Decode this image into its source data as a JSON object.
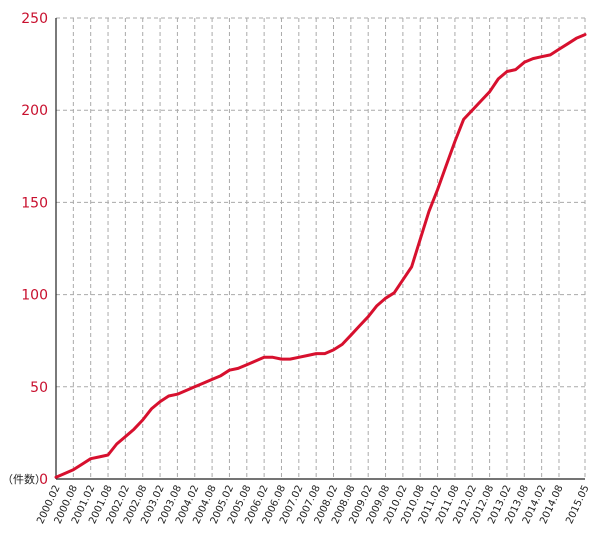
{
  "chart_data": {
    "type": "line",
    "title": "",
    "xlabel": "",
    "ylabel": "（件数）",
    "ylim": [
      0,
      250
    ],
    "yticks": [
      "0",
      "50",
      "100",
      "150",
      "200",
      "250"
    ],
    "grid": true,
    "colors": {
      "line": "#d7102e",
      "axis_text": "#c8102e",
      "grid": "#aaaaaa"
    },
    "x_ticks": [
      "2000.02",
      "2000.08",
      "2001.02",
      "2001.08",
      "2002.02",
      "2002.08",
      "2003.02",
      "2003.08",
      "2004.02",
      "2004.08",
      "2005.02",
      "2005.08",
      "2006.02",
      "2006.08",
      "2007.02",
      "2007.08",
      "2008.02",
      "2008.08",
      "2009.02",
      "2009.08",
      "2010.02",
      "2010.08",
      "2011.02",
      "2011.08",
      "2012.02",
      "2012.08",
      "2013.02",
      "2013.08",
      "2014.02",
      "2014.08",
      "2015.05"
    ],
    "series": [
      {
        "x": [
          "2000.02",
          "2000.05",
          "2000.08",
          "2000.11",
          "2001.02",
          "2001.05",
          "2001.08",
          "2001.11",
          "2002.02",
          "2002.05",
          "2002.08",
          "2002.11",
          "2003.02",
          "2003.05",
          "2003.08",
          "2003.11",
          "2004.02",
          "2004.05",
          "2004.08",
          "2004.11",
          "2005.02",
          "2005.05",
          "2005.08",
          "2005.11",
          "2006.02",
          "2006.05",
          "2006.08",
          "2006.11",
          "2007.02",
          "2007.05",
          "2007.08",
          "2007.11",
          "2008.02",
          "2008.05",
          "2008.08",
          "2008.11",
          "2009.02",
          "2009.05",
          "2009.08",
          "2009.11",
          "2010.02",
          "2010.05",
          "2010.08",
          "2010.11",
          "2011.02",
          "2011.05",
          "2011.08",
          "2011.11",
          "2012.02",
          "2012.05",
          "2012.08",
          "2012.11",
          "2013.02",
          "2013.05",
          "2013.08",
          "2013.11",
          "2014.02",
          "2014.05",
          "2014.08",
          "2014.11",
          "2015.02",
          "2015.05"
        ],
        "values": [
          1,
          3,
          5,
          8,
          11,
          12,
          13,
          19,
          23,
          27,
          32,
          38,
          42,
          45,
          46,
          48,
          50,
          52,
          54,
          56,
          59,
          60,
          62,
          64,
          66,
          66,
          65,
          65,
          66,
          67,
          68,
          68,
          70,
          73,
          78,
          83,
          88,
          94,
          98,
          101,
          108,
          115,
          130,
          145,
          157,
          170,
          183,
          195,
          200,
          205,
          210,
          217,
          221,
          222,
          226,
          228,
          229,
          230,
          233,
          236,
          239,
          241
        ]
      }
    ]
  }
}
